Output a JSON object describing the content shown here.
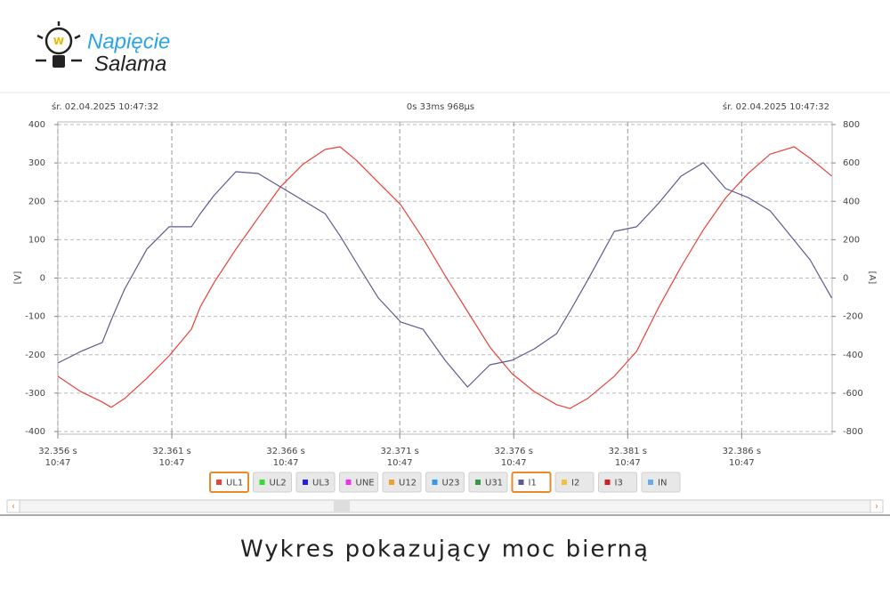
{
  "logo": {
    "line1": "Napięcie",
    "line2": "Salama"
  },
  "header": {
    "left": "śr. 02.04.2025 10:47:32",
    "center": "0s 33ms 968µs",
    "right": "śr. 02.04.2025 10:47:32"
  },
  "caption": "Wykres pokazujący moc bierną",
  "chart_data": {
    "type": "line",
    "x": [
      32.356,
      32.357,
      32.35795,
      32.35834,
      32.35893,
      32.35991,
      32.36088,
      32.36186,
      32.36225,
      32.36284,
      32.36381,
      32.36479,
      32.36577,
      32.36674,
      32.36772,
      32.36838,
      32.36909,
      32.37006,
      32.37104,
      32.37202,
      32.37299,
      32.37397,
      32.37495,
      32.37592,
      32.3769,
      32.37788,
      32.37846,
      32.37924,
      32.38041,
      32.38139,
      32.38237,
      32.38334,
      32.38432,
      32.3853,
      32.38627,
      32.38725,
      32.3883,
      32.389,
      32.38995
    ],
    "xlim": [
      32.356,
      32.389968
    ],
    "xticks": [
      {
        "value": 32.356,
        "label": "32.356 s"
      },
      {
        "value": 32.361,
        "label": "32.361 s"
      },
      {
        "value": 32.366,
        "label": "32.366 s"
      },
      {
        "value": 32.371,
        "label": "32.371 s"
      },
      {
        "value": 32.376,
        "label": "32.376 s"
      },
      {
        "value": 32.381,
        "label": "32.381 s"
      },
      {
        "value": 32.386,
        "label": "32.386 s"
      }
    ],
    "xtick_sublabels": [
      "10:47",
      "10:47",
      "10:47",
      "10:47",
      "10:47",
      "10:47",
      "10:47"
    ],
    "y_label": "[V]",
    "y2_label": "[A]",
    "ylim": [
      -400,
      400
    ],
    "yticks": [
      -400,
      -300,
      -200,
      -100,
      0,
      100,
      200,
      300,
      400
    ],
    "y2lim": [
      -800,
      800
    ],
    "y2ticks": [
      -800,
      -600,
      -400,
      -200,
      0,
      200,
      400,
      600,
      800
    ],
    "grid": true,
    "series": [
      {
        "name": "UL1",
        "color": "#e8413a",
        "axis": "y",
        "values": [
          -256,
          -296,
          -323,
          -337,
          -314,
          -261,
          -203,
          -133,
          -75,
          -13,
          75,
          157,
          238,
          296,
          335,
          342,
          307,
          249,
          191,
          103,
          6,
          -87,
          -180,
          -249,
          -296,
          -330,
          -340,
          -314,
          -256,
          -191,
          -75,
          29,
          126,
          209,
          272,
          323,
          342,
          312,
          266
        ]
      },
      {
        "name": "UL2",
        "color": "#33dd33"
      },
      {
        "name": "UL3",
        "color": "#2222dd"
      },
      {
        "name": "UNE",
        "color": "#ee33ee"
      },
      {
        "name": "U12",
        "color": "#f0a030"
      },
      {
        "name": "U23",
        "color": "#3399ee"
      },
      {
        "name": "U31",
        "color": "#339944"
      },
      {
        "name": "I1",
        "color": "#5c5a90",
        "axis": "y2",
        "values": [
          -443,
          -383,
          -336,
          -220,
          -58,
          151,
          267,
          267,
          336,
          429,
          554,
          545,
          475,
          406,
          336,
          220,
          81,
          -104,
          -229,
          -267,
          -429,
          -568,
          -452,
          -429,
          -369,
          -290,
          -174,
          -12,
          243,
          267,
          392,
          531,
          601,
          466,
          420,
          350,
          197,
          95,
          -104
        ]
      },
      {
        "name": "I2",
        "color": "#f5c040"
      },
      {
        "name": "I3",
        "color": "#cc2222"
      },
      {
        "name": "IN",
        "color": "#66aaee"
      }
    ]
  }
}
